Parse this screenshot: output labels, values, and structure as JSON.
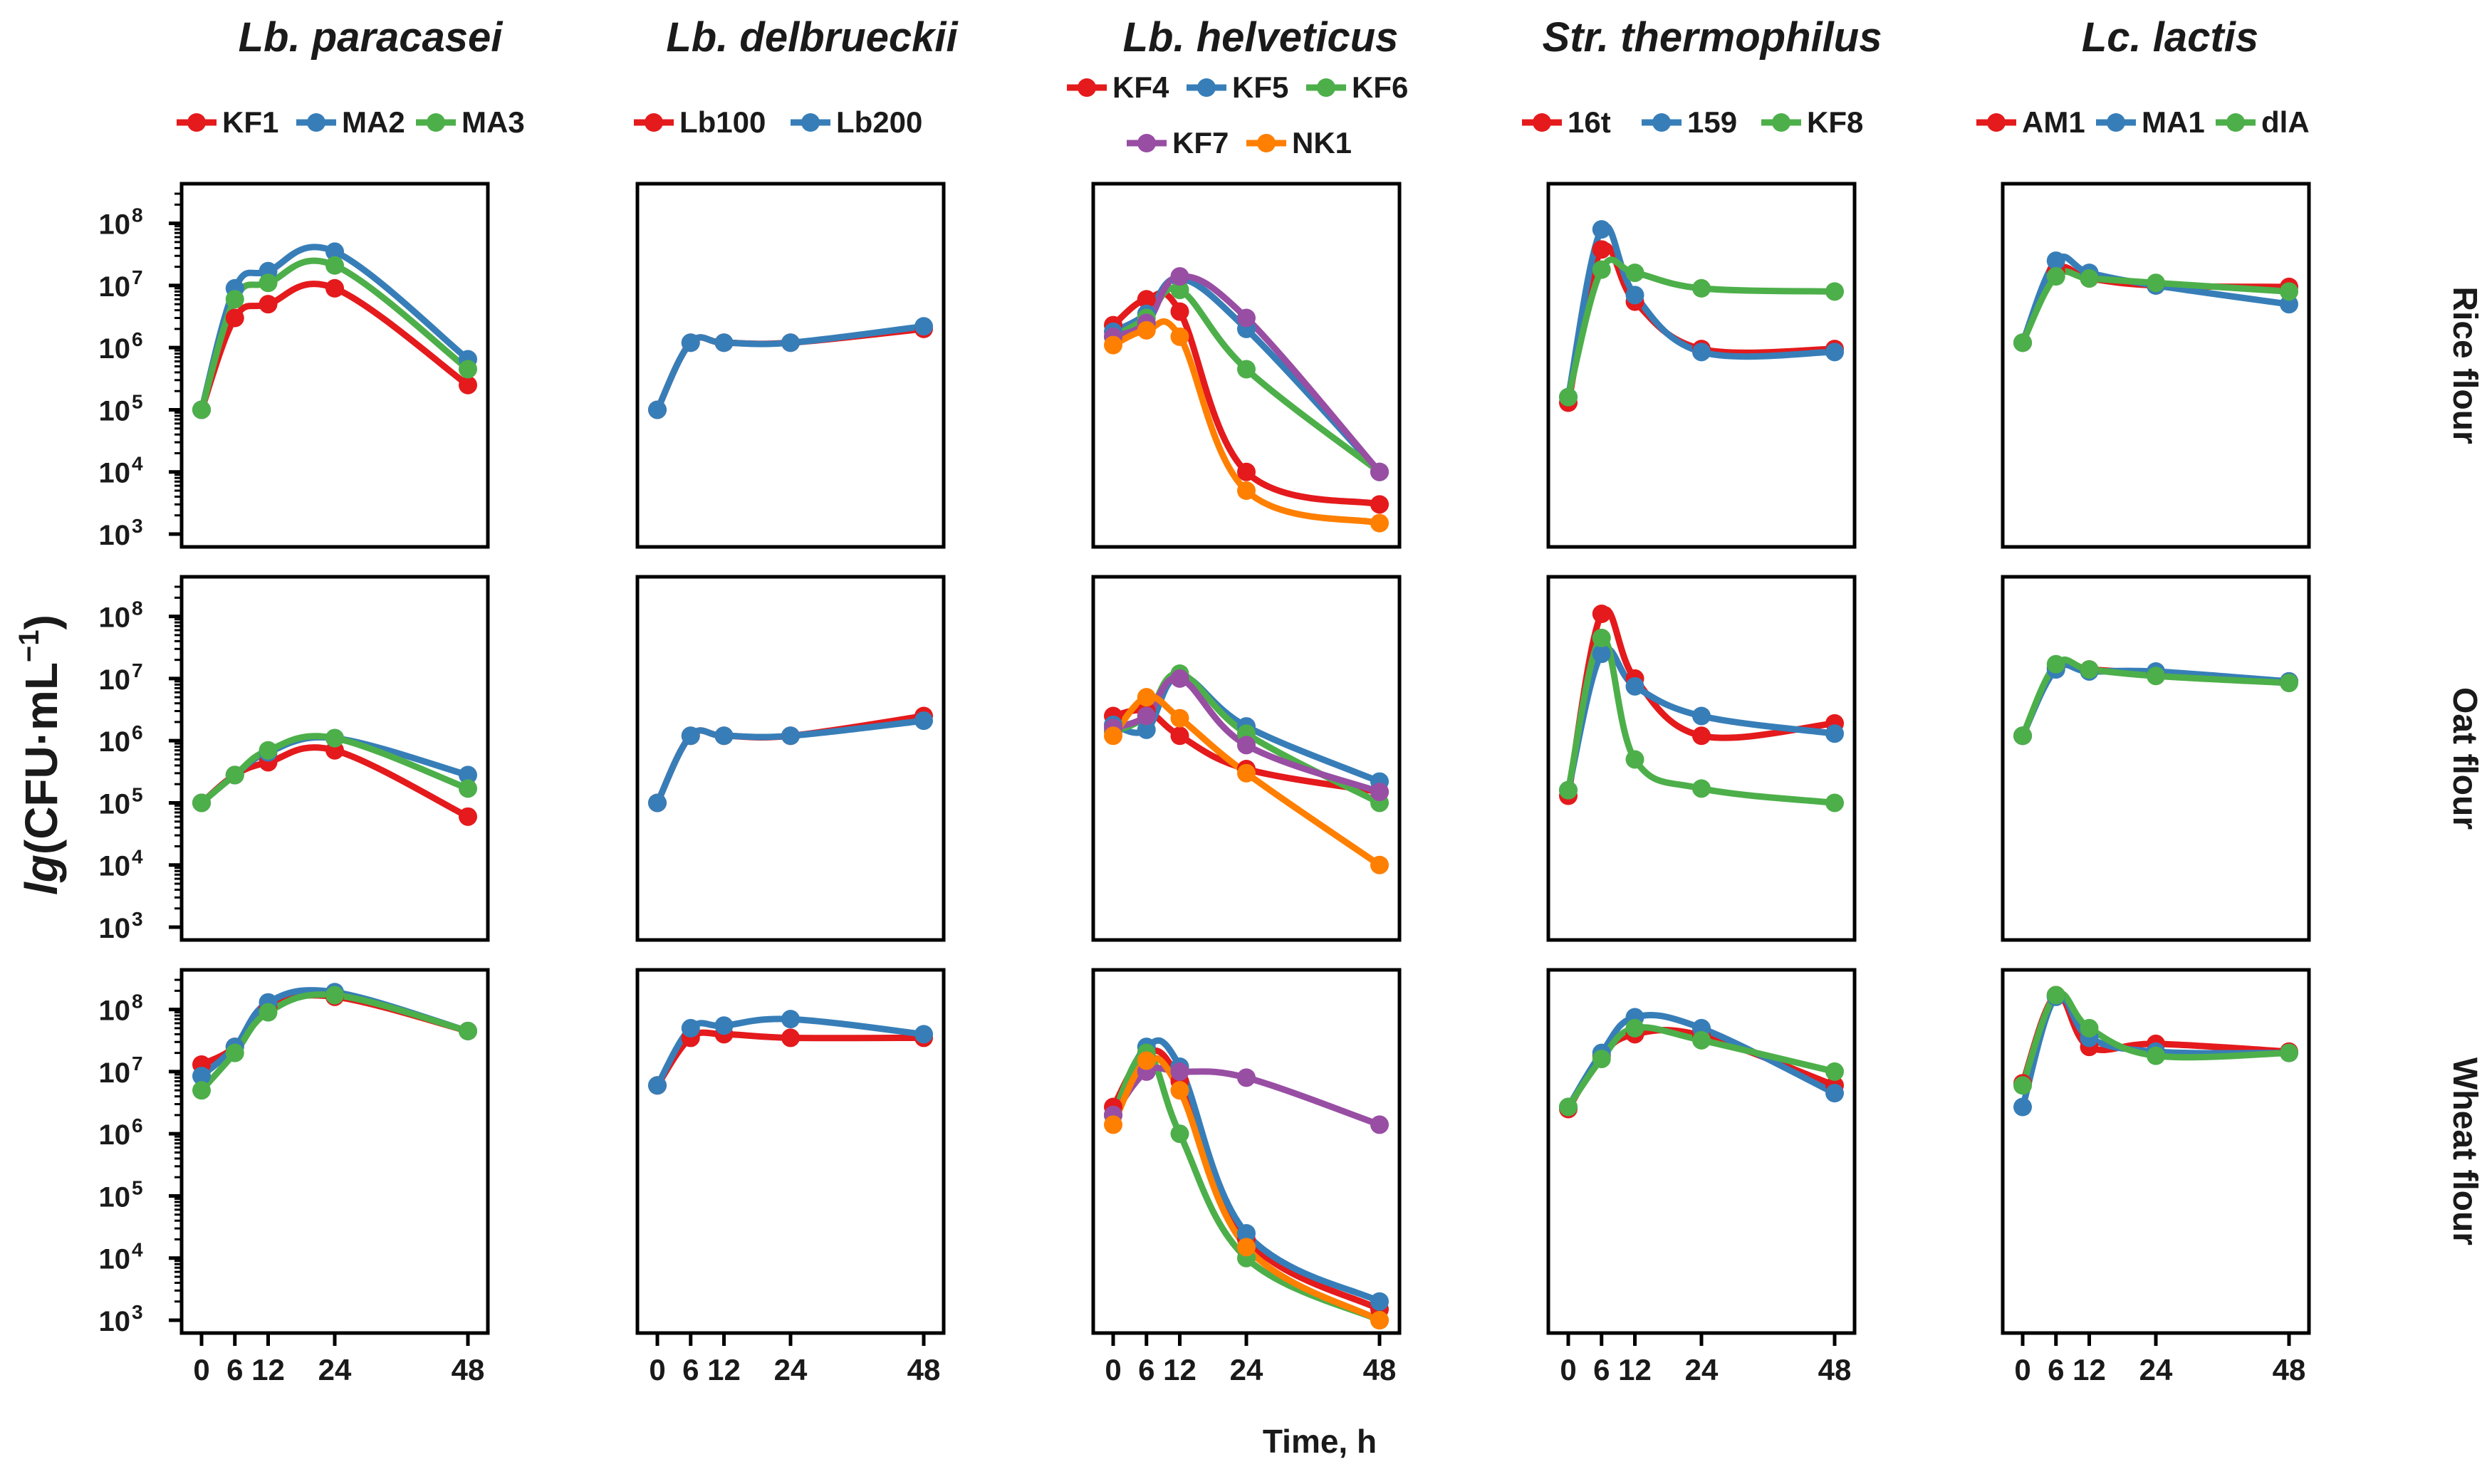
{
  "colors": {
    "red": "#e41a1c",
    "blue": "#377eb8",
    "green": "#4daf4a",
    "purple": "#984ea3",
    "orange": "#ff7f00"
  },
  "chart_data": {
    "type": "line",
    "title": "",
    "ylabel": {
      "italic": "lg",
      "unit": "(CFU·mL",
      "exp": "−1",
      "close": ")"
    },
    "xlabel": "Time, h",
    "y_scale": "log10",
    "ylim": [
      1000,
      300000000
    ],
    "x": [
      0,
      6,
      12,
      24,
      48
    ],
    "xticks": [
      "0",
      "6",
      "12",
      "24",
      "48"
    ],
    "yticks": [
      {
        "base": "10",
        "exp": "3"
      },
      {
        "base": "10",
        "exp": "4"
      },
      {
        "base": "10",
        "exp": "5"
      },
      {
        "base": "10",
        "exp": "6"
      },
      {
        "base": "10",
        "exp": "7"
      },
      {
        "base": "10",
        "exp": "8"
      }
    ],
    "rows": [
      "Rice flour",
      "Oat flour",
      "Wheat flour"
    ],
    "columns": [
      {
        "species": "Lb. paracasei",
        "legend": [
          {
            "name": "KF1",
            "color": "red"
          },
          {
            "name": "MA2",
            "color": "blue"
          },
          {
            "name": "MA3",
            "color": "green"
          }
        ],
        "panels": [
          {
            "flour": "Rice flour",
            "series": [
              {
                "name": "KF1",
                "color": "red",
                "values": [
                  100000,
                  3000000,
                  5000000,
                  9000000,
                  250000
                ]
              },
              {
                "name": "MA2",
                "color": "blue",
                "values": [
                  100000,
                  9000000,
                  17000000,
                  35000000,
                  650000
                ]
              },
              {
                "name": "MA3",
                "color": "green",
                "values": [
                  100000,
                  6000000,
                  11000000,
                  21000000,
                  450000
                ]
              }
            ]
          },
          {
            "flour": "Oat flour",
            "series": [
              {
                "name": "KF1",
                "color": "red",
                "values": [
                  100000,
                  280000,
                  450000,
                  700000,
                  60000
                ]
              },
              {
                "name": "MA2",
                "color": "blue",
                "values": [
                  100000,
                  280000,
                  650000,
                  1100000,
                  280000
                ]
              },
              {
                "name": "MA3",
                "color": "green",
                "values": [
                  100000,
                  280000,
                  700000,
                  1100000,
                  170000
                ]
              }
            ]
          },
          {
            "flour": "Wheat flour",
            "series": [
              {
                "name": "KF1",
                "color": "red",
                "values": [
                  13000000,
                  25000000,
                  110000000,
                  160000000,
                  45000000
                ]
              },
              {
                "name": "MA2",
                "color": "blue",
                "values": [
                  8500000,
                  25000000,
                  130000000,
                  190000000,
                  45000000
                ]
              },
              {
                "name": "MA3",
                "color": "green",
                "values": [
                  5000000,
                  20000000,
                  90000000,
                  170000000,
                  45000000
                ]
              }
            ]
          }
        ]
      },
      {
        "species": "Lb. delbrueckii",
        "legend": [
          {
            "name": "Lb100",
            "color": "red"
          },
          {
            "name": "Lb200",
            "color": "blue"
          }
        ],
        "panels": [
          {
            "flour": "Rice flour",
            "series": [
              {
                "name": "Lb100",
                "color": "red",
                "values": [
                  100000,
                  1200000,
                  1200000,
                  1200000,
                  2000000
                ]
              },
              {
                "name": "Lb200",
                "color": "blue",
                "values": [
                  100000,
                  1200000,
                  1200000,
                  1200000,
                  2200000
                ]
              }
            ]
          },
          {
            "flour": "Oat flour",
            "series": [
              {
                "name": "Lb100",
                "color": "red",
                "values": [
                  100000,
                  1200000,
                  1200000,
                  1200000,
                  2500000
                ]
              },
              {
                "name": "Lb200",
                "color": "blue",
                "values": [
                  100000,
                  1200000,
                  1200000,
                  1200000,
                  2100000
                ]
              }
            ]
          },
          {
            "flour": "Wheat flour",
            "series": [
              {
                "name": "Lb100",
                "color": "red",
                "values": [
                  6000000,
                  35000000,
                  40000000,
                  35000000,
                  35000000
                ]
              },
              {
                "name": "Lb200",
                "color": "blue",
                "values": [
                  6000000,
                  50000000,
                  55000000,
                  70000000,
                  40000000
                ]
              }
            ]
          }
        ]
      },
      {
        "species": "Lb. helveticus",
        "legend": [
          {
            "name": "KF4",
            "color": "red"
          },
          {
            "name": "KF5",
            "color": "blue"
          },
          {
            "name": "KF6",
            "color": "green"
          },
          {
            "name": "KF7",
            "color": "purple"
          },
          {
            "name": "NK1",
            "color": "orange"
          }
        ],
        "panels": [
          {
            "flour": "Rice flour",
            "series": [
              {
                "name": "KF4",
                "color": "red",
                "values": [
                  2300000,
                  6000000,
                  3800000,
                  10000,
                  3000
                ]
              },
              {
                "name": "KF5",
                "color": "blue",
                "values": [
                  1800000,
                  3500000,
                  13000000,
                  2000000,
                  10000
                ]
              },
              {
                "name": "KF6",
                "color": "green",
                "values": [
                  1500000,
                  3000000,
                  8500000,
                  450000,
                  10000
                ]
              },
              {
                "name": "KF7",
                "color": "purple",
                "values": [
                  1500000,
                  2500000,
                  14000000,
                  3000000,
                  10000
                ]
              },
              {
                "name": "NK1",
                "color": "orange",
                "values": [
                  1100000,
                  1900000,
                  1500000,
                  5000,
                  1500
                ]
              }
            ]
          },
          {
            "flour": "Oat flour",
            "series": [
              {
                "name": "KF4",
                "color": "red",
                "values": [
                  2500000,
                  3000000,
                  1200000,
                  350000,
                  150000
                ]
              },
              {
                "name": "KF5",
                "color": "blue",
                "values": [
                  1800000,
                  1500000,
                  11000000,
                  1700000,
                  220000
                ]
              },
              {
                "name": "KF6",
                "color": "green",
                "values": [
                  1400000,
                  2500000,
                  12000000,
                  1300000,
                  100000
                ]
              },
              {
                "name": "KF7",
                "color": "purple",
                "values": [
                  1600000,
                  2500000,
                  10000000,
                  850000,
                  150000
                ]
              },
              {
                "name": "NK1",
                "color": "orange",
                "values": [
                  1200000,
                  5000000,
                  2300000,
                  300000,
                  10000
                ]
              }
            ]
          },
          {
            "flour": "Wheat flour",
            "series": [
              {
                "name": "KF4",
                "color": "red",
                "values": [
                  2700000,
                  20000000,
                  7000000,
                  20000,
                  1500
                ]
              },
              {
                "name": "KF5",
                "color": "blue",
                "values": [
                  2000000,
                  25000000,
                  12000000,
                  25000,
                  2000
                ]
              },
              {
                "name": "KF6",
                "color": "green",
                "values": [
                  2000000,
                  20000000,
                  1000000,
                  10000,
                  1000
                ]
              },
              {
                "name": "KF7",
                "color": "purple",
                "values": [
                  2000000,
                  10000000,
                  10000000,
                  8000000,
                  1400000
                ]
              },
              {
                "name": "NK1",
                "color": "orange",
                "values": [
                  1400000,
                  15000000,
                  5000000,
                  15000,
                  1000
                ]
              }
            ]
          }
        ]
      },
      {
        "species": "Str. thermophilus",
        "legend": [
          {
            "name": "16t",
            "color": "red"
          },
          {
            "name": "159",
            "color": "blue"
          },
          {
            "name": "KF8",
            "color": "green"
          }
        ],
        "panels": [
          {
            "flour": "Rice flour",
            "series": [
              {
                "name": "16t",
                "color": "red",
                "values": [
                  130000,
                  38000000,
                  5500000,
                  950000,
                  950000
                ]
              },
              {
                "name": "159",
                "color": "blue",
                "values": [
                  160000,
                  80000000,
                  7000000,
                  850000,
                  850000
                ]
              },
              {
                "name": "KF8",
                "color": "green",
                "values": [
                  160000,
                  18000000,
                  16000000,
                  9000000,
                  8000000
                ]
              }
            ]
          },
          {
            "flour": "Oat flour",
            "series": [
              {
                "name": "16t",
                "color": "red",
                "values": [
                  130000,
                  110000000,
                  10000000,
                  1200000,
                  1900000
                ]
              },
              {
                "name": "159",
                "color": "blue",
                "values": [
                  160000,
                  25000000,
                  7500000,
                  2500000,
                  1300000
                ]
              },
              {
                "name": "KF8",
                "color": "green",
                "values": [
                  160000,
                  45000000,
                  500000,
                  170000,
                  100000
                ]
              }
            ]
          },
          {
            "flour": "Wheat flour",
            "series": [
              {
                "name": "16t",
                "color": "red",
                "values": [
                  2500000,
                  18000000,
                  40000000,
                  38000000,
                  6000000
                ]
              },
              {
                "name": "159",
                "color": "blue",
                "values": [
                  2700000,
                  20000000,
                  75000000,
                  50000000,
                  4500000
                ]
              },
              {
                "name": "KF8",
                "color": "green",
                "values": [
                  2700000,
                  16000000,
                  50000000,
                  32000000,
                  10000000
                ]
              }
            ]
          }
        ]
      },
      {
        "species": "Lc. lactis",
        "legend": [
          {
            "name": "AM1",
            "color": "red"
          },
          {
            "name": "MA1",
            "color": "blue"
          },
          {
            "name": "dlA",
            "color": "green"
          }
        ],
        "panels": [
          {
            "flour": "Rice flour",
            "series": [
              {
                "name": "AM1",
                "color": "red",
                "values": [
                  1200000,
                  17000000,
                  13000000,
                  10000000,
                  9500000
                ]
              },
              {
                "name": "MA1",
                "color": "blue",
                "values": [
                  1200000,
                  25000000,
                  16000000,
                  10000000,
                  5000000
                ]
              },
              {
                "name": "dlA",
                "color": "green",
                "values": [
                  1200000,
                  14000000,
                  13000000,
                  11000000,
                  8000000
                ]
              }
            ]
          },
          {
            "flour": "Oat flour",
            "series": [
              {
                "name": "AM1",
                "color": "red",
                "values": [
                  1200000,
                  15000000,
                  14000000,
                  12000000,
                  9000000
                ]
              },
              {
                "name": "MA1",
                "color": "blue",
                "values": [
                  1200000,
                  14000000,
                  13000000,
                  13000000,
                  9000000
                ]
              },
              {
                "name": "dlA",
                "color": "green",
                "values": [
                  1200000,
                  17000000,
                  14000000,
                  11000000,
                  8500000
                ]
              }
            ]
          },
          {
            "flour": "Wheat flour",
            "series": [
              {
                "name": "AM1",
                "color": "red",
                "values": [
                  6500000,
                  170000000,
                  25000000,
                  28000000,
                  21000000
                ]
              },
              {
                "name": "MA1",
                "color": "blue",
                "values": [
                  2700000,
                  160000000,
                  35000000,
                  21000000,
                  20000000
                ]
              },
              {
                "name": "dlA",
                "color": "green",
                "values": [
                  6000000,
                  170000000,
                  50000000,
                  18000000,
                  20000000
                ]
              }
            ]
          }
        ]
      }
    ]
  }
}
